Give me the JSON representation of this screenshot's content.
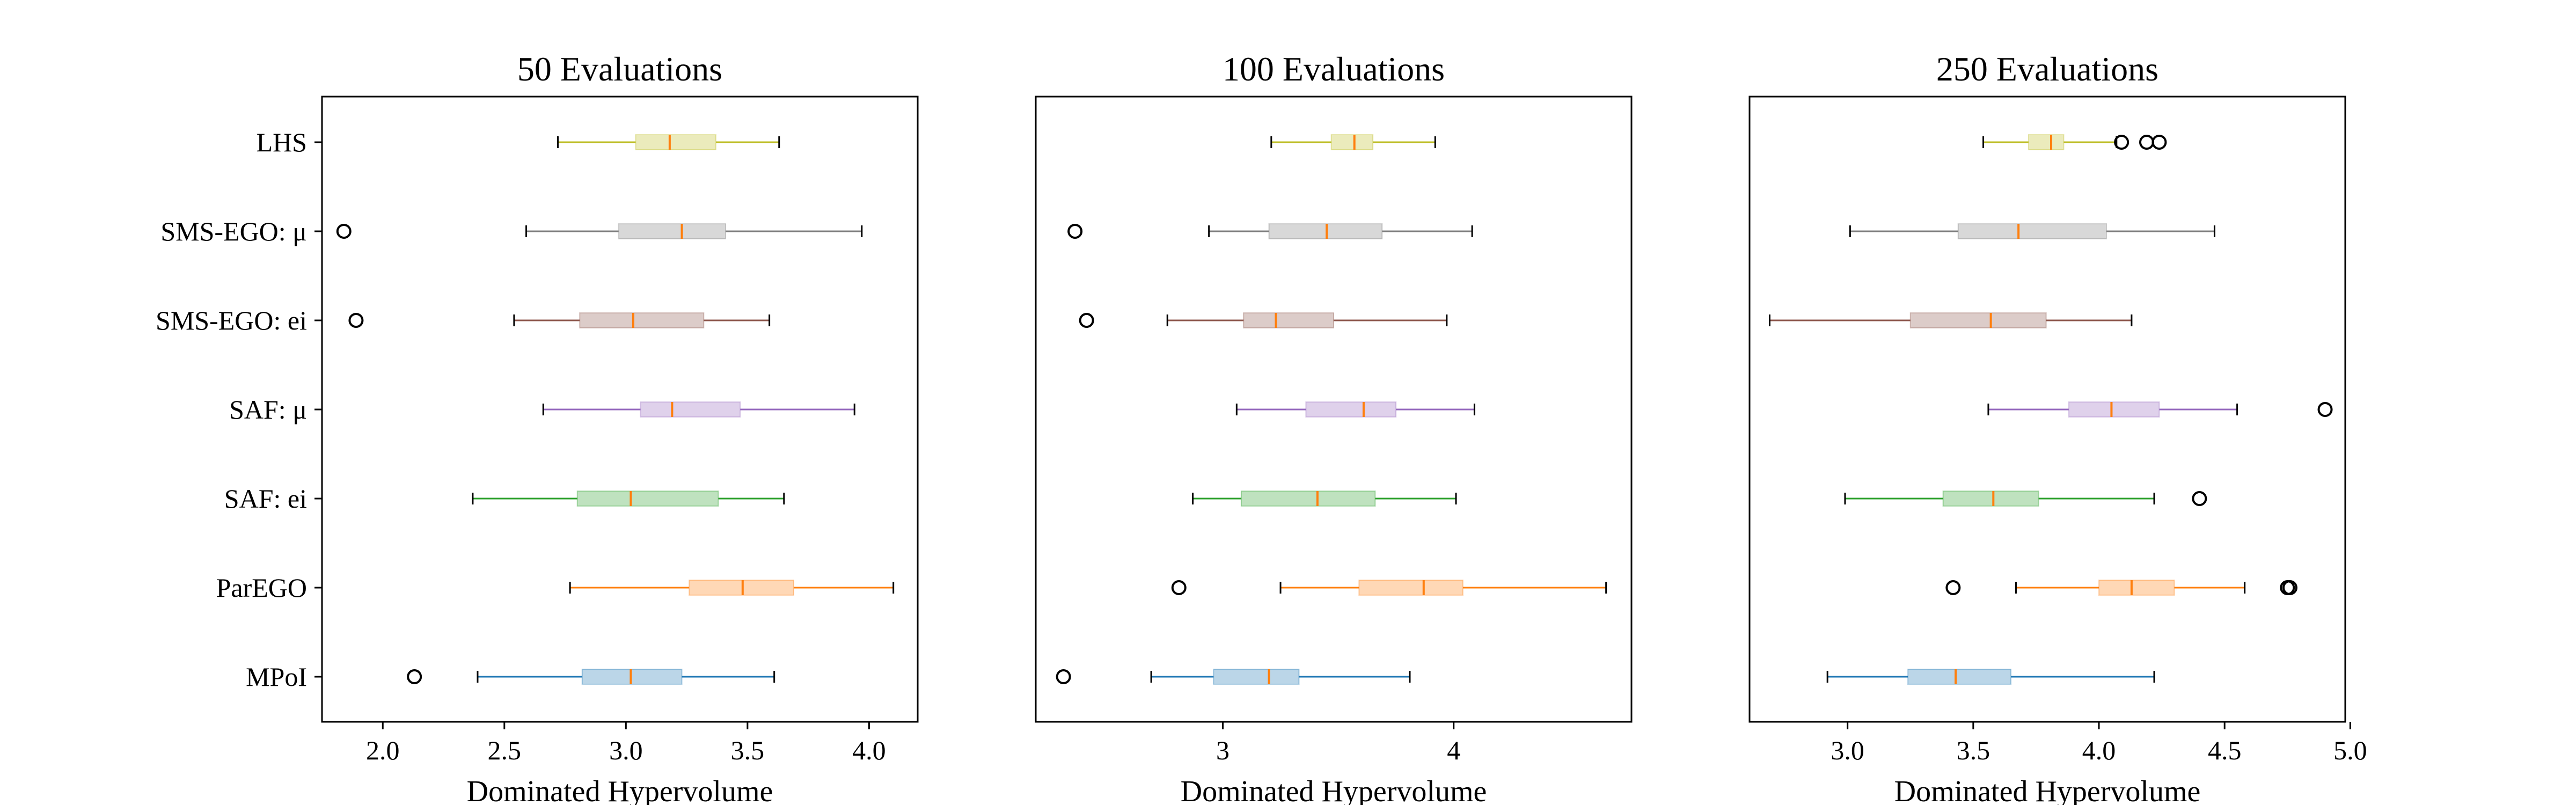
{
  "chart_data": [
    {
      "type": "boxplot",
      "orientation": "horizontal",
      "title": "50 Evaluations",
      "xlabel": "Dominated Hypervolume",
      "xlim": [
        1.75,
        4.2
      ],
      "xticks": [
        2.0,
        2.5,
        3.0,
        3.5,
        4.0
      ],
      "xtick_labels": [
        "2.0",
        "2.5",
        "3.0",
        "3.5",
        "4.0"
      ],
      "show_category_labels": true,
      "series": [
        {
          "name": "LHS",
          "whisker_low": 2.72,
          "q1": 3.04,
          "median": 3.18,
          "q3": 3.37,
          "whisker_high": 3.63,
          "outliers": []
        },
        {
          "name": "SMS-EGO: μ",
          "whisker_low": 2.59,
          "q1": 2.97,
          "median": 3.23,
          "q3": 3.41,
          "whisker_high": 3.97,
          "outliers": [
            1.84
          ]
        },
        {
          "name": "SMS-EGO: ei",
          "whisker_low": 2.54,
          "q1": 2.81,
          "median": 3.03,
          "q3": 3.32,
          "whisker_high": 3.59,
          "outliers": [
            1.89
          ]
        },
        {
          "name": "SAF: μ",
          "whisker_low": 2.66,
          "q1": 3.06,
          "median": 3.19,
          "q3": 3.47,
          "whisker_high": 3.94,
          "outliers": []
        },
        {
          "name": "SAF: ei",
          "whisker_low": 2.37,
          "q1": 2.8,
          "median": 3.02,
          "q3": 3.38,
          "whisker_high": 3.65,
          "outliers": []
        },
        {
          "name": "ParEGO",
          "whisker_low": 2.77,
          "q1": 3.26,
          "median": 3.48,
          "q3": 3.69,
          "whisker_high": 4.1,
          "outliers": []
        },
        {
          "name": "MPoI",
          "whisker_low": 2.39,
          "q1": 2.82,
          "median": 3.02,
          "q3": 3.23,
          "whisker_high": 3.61,
          "outliers": [
            2.13
          ]
        }
      ]
    },
    {
      "type": "boxplot",
      "orientation": "horizontal",
      "title": "100 Evaluations",
      "xlabel": "Dominated Hypervolume",
      "xlim": [
        2.19,
        4.77
      ],
      "xticks": [
        3,
        4
      ],
      "xtick_labels": [
        "3",
        "4"
      ],
      "show_category_labels": false,
      "series": [
        {
          "name": "LHS",
          "whisker_low": 3.21,
          "q1": 3.47,
          "median": 3.57,
          "q3": 3.65,
          "whisker_high": 3.92,
          "outliers": []
        },
        {
          "name": "SMS-EGO: μ",
          "whisker_low": 2.94,
          "q1": 3.2,
          "median": 3.45,
          "q3": 3.69,
          "whisker_high": 4.08,
          "outliers": [
            2.36
          ]
        },
        {
          "name": "SMS-EGO: ei",
          "whisker_low": 2.76,
          "q1": 3.09,
          "median": 3.23,
          "q3": 3.48,
          "whisker_high": 3.97,
          "outliers": [
            2.41
          ]
        },
        {
          "name": "SAF: μ",
          "whisker_low": 3.06,
          "q1": 3.36,
          "median": 3.61,
          "q3": 3.75,
          "whisker_high": 4.09,
          "outliers": []
        },
        {
          "name": "SAF: ei",
          "whisker_low": 2.87,
          "q1": 3.08,
          "median": 3.41,
          "q3": 3.66,
          "whisker_high": 4.01,
          "outliers": []
        },
        {
          "name": "ParEGO",
          "whisker_low": 3.25,
          "q1": 3.59,
          "median": 3.87,
          "q3": 4.04,
          "whisker_high": 4.66,
          "outliers": [
            2.81
          ]
        },
        {
          "name": "MPoI",
          "whisker_low": 2.69,
          "q1": 2.96,
          "median": 3.2,
          "q3": 3.33,
          "whisker_high": 3.81,
          "outliers": [
            2.31
          ]
        }
      ]
    },
    {
      "type": "boxplot",
      "orientation": "horizontal",
      "title": "250 Evaluations",
      "xlabel": "Dominated Hypervolume",
      "xlim": [
        2.61,
        4.98
      ],
      "xticks": [
        3.0,
        3.5,
        4.0,
        4.5,
        5.0
      ],
      "xtick_labels": [
        "3.0",
        "3.5",
        "4.0",
        "4.5",
        "5.0"
      ],
      "show_category_labels": false,
      "series": [
        {
          "name": "LHS",
          "whisker_low": 3.54,
          "q1": 3.72,
          "median": 3.81,
          "q3": 3.86,
          "whisker_high": 4.07,
          "outliers": [
            4.09,
            4.19,
            4.24
          ]
        },
        {
          "name": "SMS-EGO: μ",
          "whisker_low": 3.01,
          "q1": 3.44,
          "median": 3.68,
          "q3": 4.03,
          "whisker_high": 4.46,
          "outliers": []
        },
        {
          "name": "SMS-EGO: ei",
          "whisker_low": 2.69,
          "q1": 3.25,
          "median": 3.57,
          "q3": 3.79,
          "whisker_high": 4.13,
          "outliers": []
        },
        {
          "name": "SAF: μ",
          "whisker_low": 3.56,
          "q1": 3.88,
          "median": 4.05,
          "q3": 4.24,
          "whisker_high": 4.55,
          "outliers": [
            4.9
          ]
        },
        {
          "name": "SAF: ei",
          "whisker_low": 2.99,
          "q1": 3.38,
          "median": 3.58,
          "q3": 3.76,
          "whisker_high": 4.22,
          "outliers": [
            4.4
          ]
        },
        {
          "name": "ParEGO",
          "whisker_low": 3.67,
          "q1": 4.0,
          "median": 4.13,
          "q3": 4.3,
          "whisker_high": 4.58,
          "outliers": [
            3.42,
            4.75,
            4.76
          ]
        },
        {
          "name": "MPoI",
          "whisker_low": 2.92,
          "q1": 3.24,
          "median": 3.43,
          "q3": 3.65,
          "whisker_high": 4.22,
          "outliers": []
        }
      ]
    }
  ],
  "colors": {
    "LHS": "#bcbd22",
    "SMS-EGO: μ": "#7f7f7f",
    "SMS-EGO: ei": "#8c564b",
    "SAF: μ": "#9467bd",
    "SAF: ei": "#2ca02c",
    "ParEGO": "#ff7f0e",
    "MPoI": "#1f77b4",
    "median": "#ff7f0e",
    "axes": "#000000"
  }
}
